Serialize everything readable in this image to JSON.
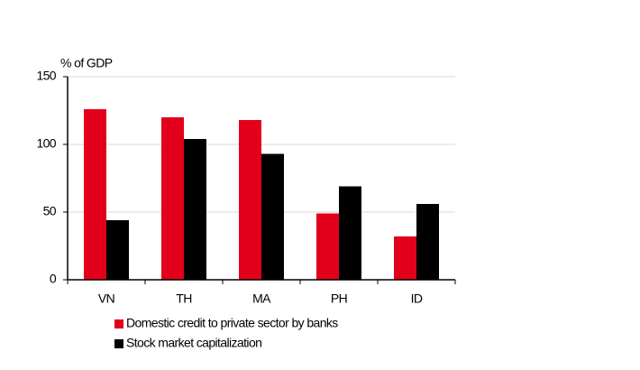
{
  "chart_data": {
    "type": "bar",
    "y_label": "% of GDP",
    "categories": [
      "VN",
      "TH",
      "MA",
      "PH",
      "ID"
    ],
    "series": [
      {
        "name": "Domestic credit to private sector by banks",
        "color": "#e2001a",
        "values": [
          126,
          120,
          118,
          49,
          32
        ]
      },
      {
        "name": "Stock market capitalization",
        "color": "#000000",
        "values": [
          44,
          104,
          93,
          69,
          56
        ]
      }
    ],
    "ylim": [
      0,
      150
    ],
    "yticks": [
      0,
      50,
      100,
      150
    ],
    "grid": true
  }
}
